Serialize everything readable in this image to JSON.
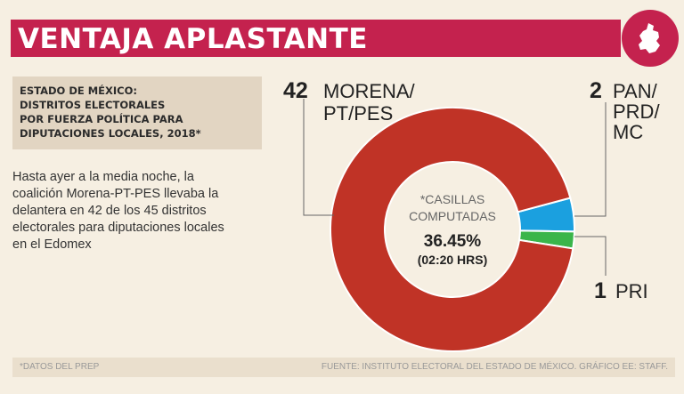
{
  "header": {
    "title": "VENTAJA APLASTANTE",
    "badge_icon": "estado-de-mexico-map-icon"
  },
  "subtitle": {
    "lines": [
      "ESTADO DE MÉXICO:",
      "DISTRITOS ELECTORALES",
      "POR FUERZA POLÍTICA PARA",
      "DIPUTACIONES LOCALES, 2018*"
    ]
  },
  "description": {
    "lines": [
      "Hasta ayer a la media noche, la",
      "coalición Morena-PT-PES llevaba la",
      "delantera en 42 de los 45 distritos",
      "electorales para diputaciones locales",
      "en el Edomex"
    ]
  },
  "chart_data": {
    "type": "pie",
    "donut": true,
    "title": "ESTADO DE MÉXICO: DISTRITOS ELECTORALES POR FUERZA POLÍTICA PARA DIPUTACIONES LOCALES, 2018*",
    "center_label": "*CASILLAS COMPUTADAS",
    "center_value": "36.45%",
    "center_time": "(02:20 HRS)",
    "slices": [
      {
        "label": "PAN/PRD/MC",
        "value": 2,
        "color": "#1ba0df"
      },
      {
        "label": "PRI",
        "value": 1,
        "color": "#3ab54a"
      },
      {
        "label": "MORENA/PT/PES",
        "value": 42,
        "color": "#c03326"
      }
    ],
    "annotations": [
      {
        "number": "42",
        "label_lines": [
          "MORENA/",
          "PT/PES"
        ]
      },
      {
        "number": "2",
        "label_lines": [
          "PAN/",
          "PRD/",
          "MC"
        ]
      },
      {
        "number": "1",
        "label_lines": [
          "PRI"
        ]
      }
    ]
  },
  "footer": {
    "footnote": "*DATOS DEL PREP",
    "source": "FUENTE: INSTITUTO ELECTORAL DEL ESTADO DE MÉXICO.  GRÁFICO EE: STAFF."
  },
  "colors": {
    "title_bg": "#c4224e",
    "background": "#f6efe2",
    "subtitle_bg": "#e2d5c2"
  }
}
